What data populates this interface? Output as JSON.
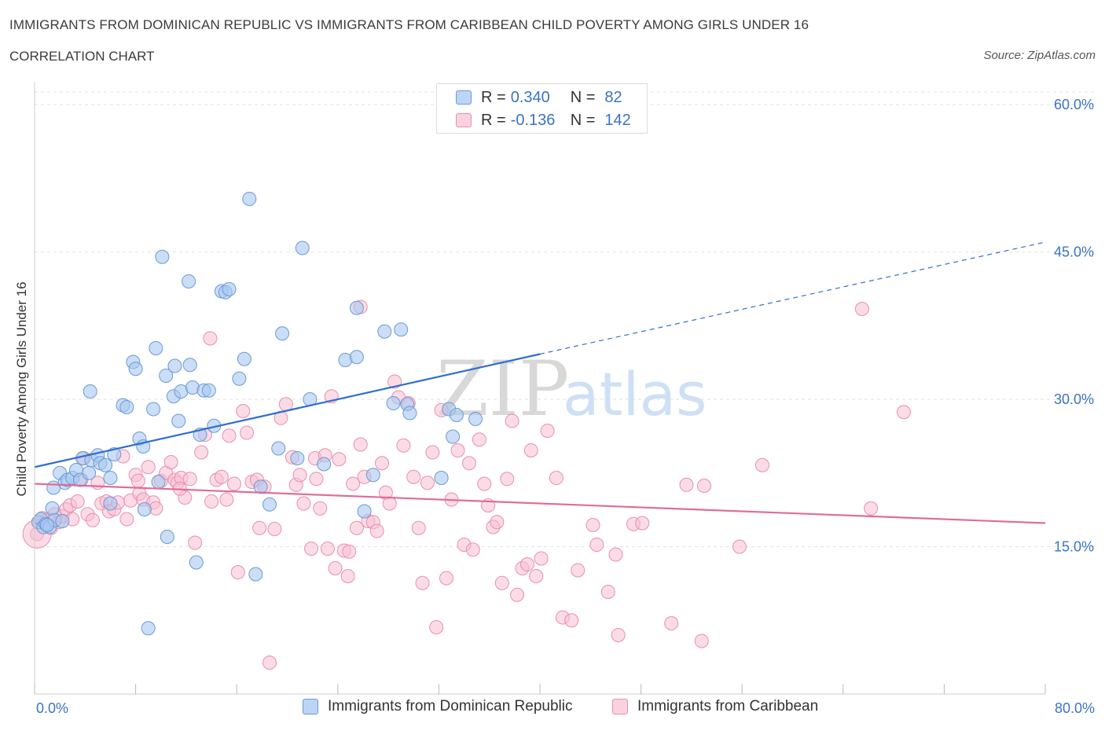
{
  "header": {
    "title": "IMMIGRANTS FROM DOMINICAN REPUBLIC VS IMMIGRANTS FROM CARIBBEAN CHILD POVERTY AMONG GIRLS UNDER 16",
    "subtitle": "CORRELATION CHART",
    "source": "Source: ZipAtlas.com"
  },
  "legend": {
    "rows": [
      {
        "r_label": "R =",
        "r_value": "0.340",
        "n_label": "N =",
        "n_value": "82",
        "color": "#a9c8f0"
      },
      {
        "r_label": "R =",
        "r_value": "-0.136",
        "n_label": "N =",
        "n_value": "142",
        "color": "#f5b8cc"
      }
    ]
  },
  "watermark": {
    "zip": "ZIP",
    "atlas": "atlas"
  },
  "colors": {
    "blue_fill": "#a9c8f0",
    "blue_stroke": "#6b9ad6",
    "blue_line": "#2f6fd0",
    "pink_fill": "#f7c0d2",
    "pink_stroke": "#e98fae",
    "pink_line": "#e06c99",
    "tick_label": "#3b73c4",
    "grid": "#e2e2e2"
  },
  "chart_data": {
    "type": "scatter",
    "title": "IMMIGRANTS FROM DOMINICAN REPUBLIC VS IMMIGRANTS FROM CARIBBEAN CHILD POVERTY AMONG GIRLS UNDER 16",
    "xlabel": "",
    "ylabel": "Child Poverty Among Girls Under 16",
    "xlim": [
      0,
      80
    ],
    "ylim": [
      0,
      60
    ],
    "x_tick_labels": [
      "0.0%",
      "80.0%"
    ],
    "y_ticks": [
      15,
      30,
      45,
      60
    ],
    "y_tick_labels": [
      "15.0%",
      "30.0%",
      "45.0%",
      "60.0%"
    ],
    "grid": true,
    "legend_position": "top-center",
    "series": [
      {
        "name": "Immigrants from Dominican Republic",
        "color": "#a9c8f0",
        "trend": {
          "x": [
            0,
            40
          ],
          "y": [
            23.1,
            34.6
          ],
          "extended_to": [
            80,
            46.0
          ]
        },
        "points": [
          [
            0.3,
            17.5
          ],
          [
            0.5,
            17.8
          ],
          [
            0.7,
            17.0
          ],
          [
            0.9,
            17.3
          ],
          [
            1.2,
            17.0
          ],
          [
            1.4,
            18.9
          ],
          [
            1.6,
            17.7
          ],
          [
            1.5,
            21.0
          ],
          [
            2.0,
            22.5
          ],
          [
            2.4,
            21.5
          ],
          [
            2.6,
            21.8
          ],
          [
            3.0,
            22.0
          ],
          [
            3.3,
            22.8
          ],
          [
            3.6,
            21.8
          ],
          [
            3.8,
            24.0
          ],
          [
            4.3,
            22.5
          ],
          [
            4.5,
            23.8
          ],
          [
            5.0,
            24.3
          ],
          [
            5.2,
            23.5
          ],
          [
            5.6,
            23.3
          ],
          [
            6.0,
            22.0
          ],
          [
            6.3,
            24.4
          ],
          [
            6.0,
            19.4
          ],
          [
            4.4,
            30.8
          ],
          [
            7.0,
            29.4
          ],
          [
            7.3,
            29.2
          ],
          [
            7.8,
            33.8
          ],
          [
            8.0,
            33.1
          ],
          [
            8.3,
            26.0
          ],
          [
            8.6,
            25.2
          ],
          [
            8.7,
            18.8
          ],
          [
            9.4,
            29.0
          ],
          [
            9.6,
            35.2
          ],
          [
            9.8,
            21.6
          ],
          [
            10.1,
            44.5
          ],
          [
            10.4,
            32.4
          ],
          [
            10.5,
            16.0
          ],
          [
            11.0,
            30.3
          ],
          [
            11.1,
            33.4
          ],
          [
            11.6,
            30.8
          ],
          [
            11.4,
            27.8
          ],
          [
            12.2,
            42.0
          ],
          [
            12.3,
            33.5
          ],
          [
            12.5,
            31.2
          ],
          [
            13.1,
            26.4
          ],
          [
            13.4,
            30.9
          ],
          [
            13.8,
            30.9
          ],
          [
            14.2,
            27.3
          ],
          [
            14.8,
            41.0
          ],
          [
            15.1,
            40.9
          ],
          [
            15.4,
            41.2
          ],
          [
            16.2,
            32.1
          ],
          [
            16.6,
            34.1
          ],
          [
            17.0,
            50.4
          ],
          [
            17.9,
            21.1
          ],
          [
            18.6,
            19.3
          ],
          [
            19.3,
            25.0
          ],
          [
            19.6,
            36.7
          ],
          [
            20.8,
            24.0
          ],
          [
            21.2,
            45.4
          ],
          [
            21.8,
            30.0
          ],
          [
            22.9,
            23.4
          ],
          [
            24.6,
            34.0
          ],
          [
            25.5,
            34.3
          ],
          [
            25.5,
            39.3
          ],
          [
            26.1,
            18.6
          ],
          [
            26.8,
            22.3
          ],
          [
            27.7,
            36.9
          ],
          [
            28.4,
            29.6
          ],
          [
            29.0,
            37.1
          ],
          [
            29.5,
            29.5
          ],
          [
            29.7,
            28.6
          ],
          [
            32.2,
            22.0
          ],
          [
            32.8,
            29.0
          ],
          [
            33.1,
            26.2
          ],
          [
            33.4,
            28.4
          ],
          [
            34.9,
            28.0
          ],
          [
            9.0,
            6.7
          ],
          [
            12.8,
            13.4
          ],
          [
            17.5,
            12.2
          ],
          [
            2.2,
            17.6
          ],
          [
            1.0,
            17.2
          ]
        ]
      },
      {
        "name": "Immigrants from Caribbean",
        "color": "#f7c0d2",
        "trend": {
          "x": [
            0,
            80
          ],
          "y": [
            21.4,
            17.4
          ]
        },
        "points": [
          [
            0.2,
            16.3
          ],
          [
            0.4,
            17.5
          ],
          [
            0.6,
            17.9
          ],
          [
            0.8,
            17.3
          ],
          [
            1.1,
            17.8
          ],
          [
            1.3,
            16.9
          ],
          [
            1.6,
            18.3
          ],
          [
            1.9,
            17.5
          ],
          [
            2.2,
            18.1
          ],
          [
            2.5,
            18.8
          ],
          [
            2.8,
            19.2
          ],
          [
            3.0,
            17.8
          ],
          [
            3.4,
            19.6
          ],
          [
            3.7,
            21.8
          ],
          [
            3.9,
            24.0
          ],
          [
            4.2,
            18.3
          ],
          [
            4.6,
            17.7
          ],
          [
            5.0,
            21.5
          ],
          [
            5.3,
            19.4
          ],
          [
            5.7,
            19.6
          ],
          [
            5.9,
            18.6
          ],
          [
            6.3,
            18.8
          ],
          [
            6.6,
            19.5
          ],
          [
            7.0,
            24.2
          ],
          [
            7.3,
            17.8
          ],
          [
            7.6,
            19.7
          ],
          [
            8.0,
            22.3
          ],
          [
            8.3,
            20.4
          ],
          [
            8.6,
            19.8
          ],
          [
            9.0,
            23.1
          ],
          [
            9.4,
            19.5
          ],
          [
            9.6,
            18.9
          ],
          [
            10.0,
            21.7
          ],
          [
            10.4,
            22.5
          ],
          [
            10.8,
            23.6
          ],
          [
            11.1,
            21.8
          ],
          [
            11.3,
            21.5
          ],
          [
            11.6,
            22.0
          ],
          [
            11.9,
            20.0
          ],
          [
            12.3,
            21.9
          ],
          [
            12.7,
            15.4
          ],
          [
            13.2,
            24.6
          ],
          [
            13.5,
            26.4
          ],
          [
            14.0,
            19.6
          ],
          [
            14.4,
            21.8
          ],
          [
            14.8,
            22.1
          ],
          [
            15.2,
            19.8
          ],
          [
            15.4,
            26.3
          ],
          [
            15.8,
            21.4
          ],
          [
            16.1,
            12.4
          ],
          [
            16.5,
            28.8
          ],
          [
            16.8,
            26.6
          ],
          [
            17.2,
            21.6
          ],
          [
            17.6,
            21.8
          ],
          [
            17.8,
            16.9
          ],
          [
            18.2,
            21.1
          ],
          [
            18.6,
            3.2
          ],
          [
            19.0,
            16.8
          ],
          [
            19.5,
            28.1
          ],
          [
            19.9,
            29.5
          ],
          [
            20.4,
            24.1
          ],
          [
            20.7,
            21.3
          ],
          [
            21.0,
            22.3
          ],
          [
            21.3,
            19.4
          ],
          [
            21.9,
            14.8
          ],
          [
            22.2,
            24.0
          ],
          [
            22.6,
            18.9
          ],
          [
            23.0,
            24.3
          ],
          [
            23.5,
            30.3
          ],
          [
            23.8,
            12.8
          ],
          [
            24.1,
            23.9
          ],
          [
            24.5,
            14.6
          ],
          [
            24.8,
            12.0
          ],
          [
            25.2,
            21.4
          ],
          [
            25.5,
            16.9
          ],
          [
            25.8,
            25.4
          ],
          [
            26.1,
            22.1
          ],
          [
            26.4,
            17.6
          ],
          [
            26.8,
            17.5
          ],
          [
            27.1,
            16.6
          ],
          [
            27.5,
            23.5
          ],
          [
            27.8,
            20.5
          ],
          [
            28.1,
            19.4
          ],
          [
            28.5,
            31.8
          ],
          [
            28.8,
            30.2
          ],
          [
            29.2,
            25.3
          ],
          [
            29.6,
            29.6
          ],
          [
            30.0,
            22.1
          ],
          [
            30.4,
            16.9
          ],
          [
            30.7,
            11.3
          ],
          [
            31.1,
            21.5
          ],
          [
            31.5,
            24.6
          ],
          [
            31.8,
            6.8
          ],
          [
            32.2,
            28.9
          ],
          [
            32.6,
            11.8
          ],
          [
            33.0,
            19.8
          ],
          [
            33.5,
            24.8
          ],
          [
            34.0,
            15.2
          ],
          [
            34.4,
            23.5
          ],
          [
            34.7,
            14.7
          ],
          [
            35.2,
            25.9
          ],
          [
            35.6,
            21.4
          ],
          [
            35.9,
            19.2
          ],
          [
            36.3,
            17.0
          ],
          [
            36.6,
            17.5
          ],
          [
            37.0,
            11.3
          ],
          [
            37.4,
            21.9
          ],
          [
            37.8,
            27.8
          ],
          [
            38.2,
            10.1
          ],
          [
            38.6,
            12.8
          ],
          [
            39.0,
            13.2
          ],
          [
            39.3,
            24.8
          ],
          [
            39.7,
            12.0
          ],
          [
            40.1,
            13.8
          ],
          [
            40.6,
            26.8
          ],
          [
            41.3,
            22.0
          ],
          [
            41.8,
            7.8
          ],
          [
            42.5,
            7.5
          ],
          [
            43.0,
            12.6
          ],
          [
            44.2,
            17.2
          ],
          [
            44.5,
            15.2
          ],
          [
            45.4,
            10.4
          ],
          [
            46.0,
            14.2
          ],
          [
            46.2,
            6.0
          ],
          [
            47.4,
            17.3
          ],
          [
            48.1,
            17.4
          ],
          [
            50.4,
            7.2
          ],
          [
            51.6,
            21.3
          ],
          [
            52.8,
            5.4
          ],
          [
            53.0,
            21.2
          ],
          [
            55.8,
            15.0
          ],
          [
            57.6,
            23.3
          ],
          [
            65.5,
            39.2
          ],
          [
            66.2,
            18.9
          ],
          [
            68.8,
            28.7
          ],
          [
            13.9,
            36.2
          ],
          [
            24.9,
            14.5
          ],
          [
            25.8,
            39.4
          ],
          [
            23.2,
            14.8
          ],
          [
            22.3,
            21.9
          ],
          [
            8.2,
            21.7
          ],
          [
            11.5,
            20.9
          ]
        ]
      }
    ]
  },
  "bottom_legend": [
    {
      "label": "Immigrants from Dominican Republic",
      "color": "#a9c8f0"
    },
    {
      "label": "Immigrants from Caribbean",
      "color": "#f7c0d2"
    }
  ]
}
